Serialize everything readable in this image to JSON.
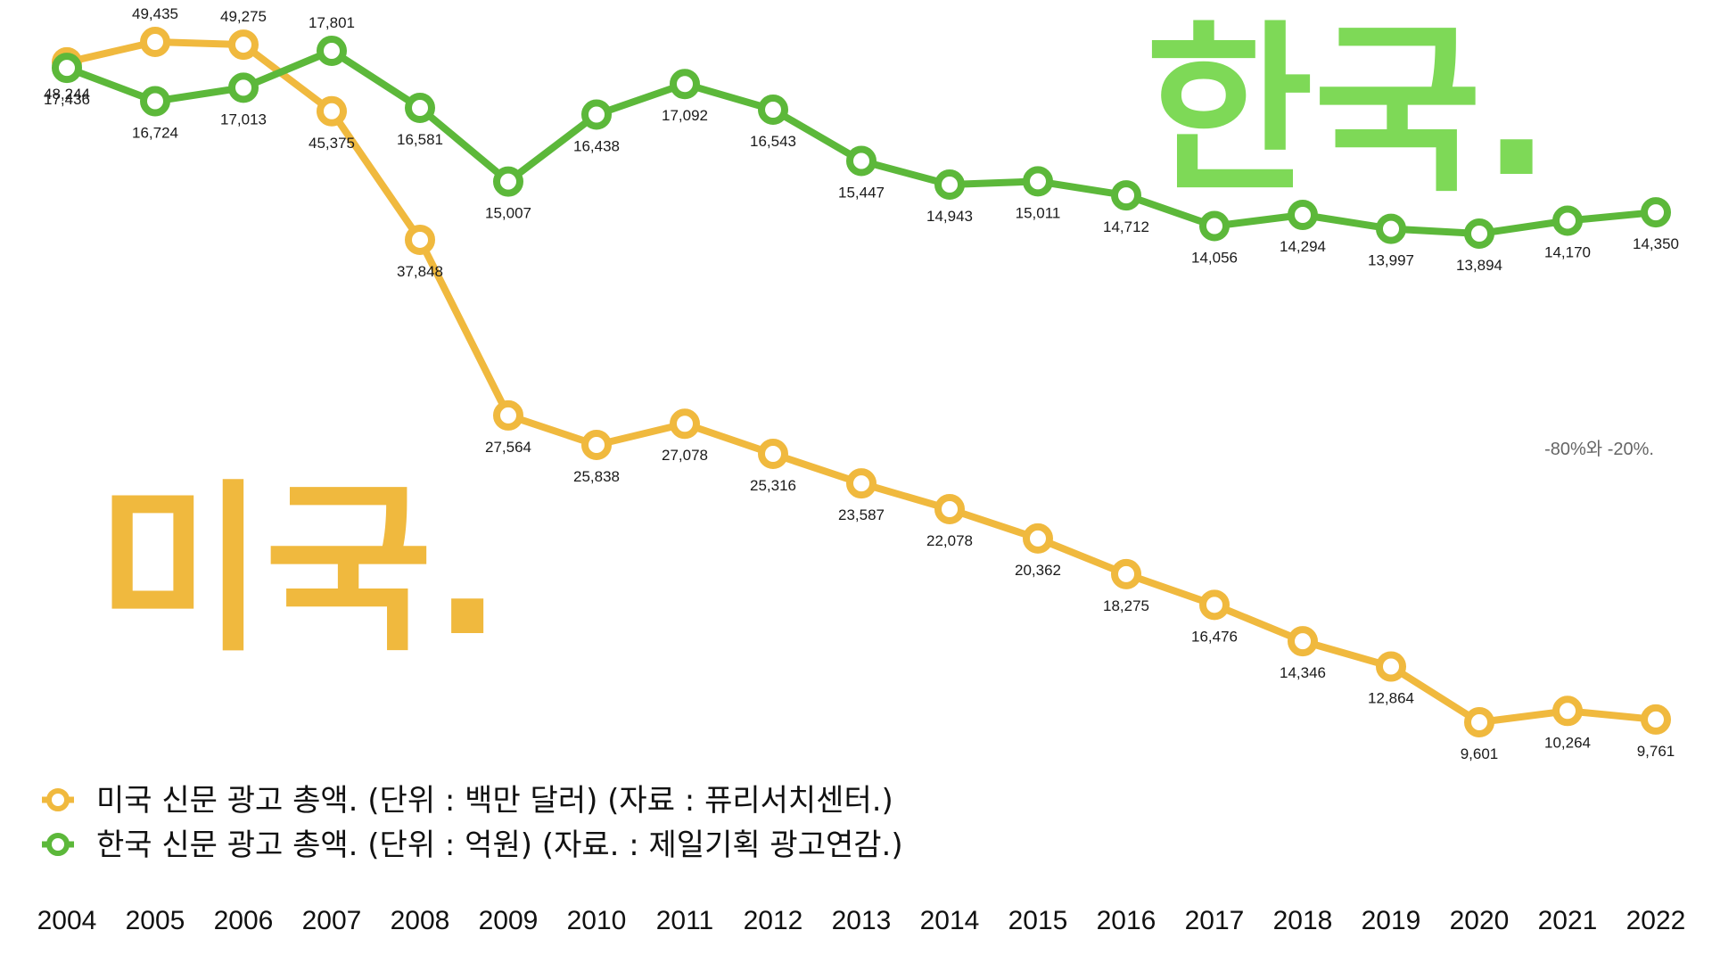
{
  "chart_data": {
    "type": "line",
    "x": [
      "2004",
      "2005",
      "2006",
      "2007",
      "2008",
      "2009",
      "2010",
      "2011",
      "2012",
      "2013",
      "2014",
      "2015",
      "2016",
      "2017",
      "2018",
      "2019",
      "2020",
      "2021",
      "2022"
    ],
    "series": [
      {
        "name": "미국 신문 광고 총액. (단위 : 백만 달러) (자료 : 퓨리서치센터.)",
        "big_label": "미국.",
        "color": "#f0b93e",
        "values": [
          48244,
          49435,
          49275,
          45375,
          37848,
          27564,
          25838,
          27078,
          25316,
          23587,
          22078,
          20362,
          18275,
          16476,
          14346,
          12864,
          9601,
          10264,
          9761
        ],
        "value_labels": [
          "48,244",
          "49,435",
          "49,275",
          "45,375",
          "37,848",
          "27,564",
          "25,838",
          "27,078",
          "25,316",
          "23,587",
          "22,078",
          "20,362",
          "18,275",
          "16,476",
          "14,346",
          "12,864",
          "9,601",
          "10,264",
          "9,761"
        ]
      },
      {
        "name": "한국 신문 광고 총액. (단위 : 억원) (자료. : 제일기획 광고연감.)",
        "big_label": "한국.",
        "color": "#5cb83a",
        "big_label_color": "#7ed957",
        "values": [
          17436,
          16724,
          17013,
          17801,
          16581,
          15007,
          16438,
          17092,
          16543,
          15447,
          14943,
          15011,
          14712,
          14056,
          14294,
          13997,
          13894,
          14170,
          14350
        ],
        "value_labels": [
          "17,436",
          "16,724",
          "17,013",
          "17,801",
          "16,581",
          "15,007",
          "16,438",
          "17,092",
          "16,543",
          "15,447",
          "14,943",
          "15,011",
          "14,712",
          "14,056",
          "14,294",
          "13,997",
          "13,894",
          "14,170",
          "14,350"
        ]
      }
    ],
    "annotation": "-80%와 -20%.",
    "grid": false,
    "legend_position": "bottom-left"
  }
}
